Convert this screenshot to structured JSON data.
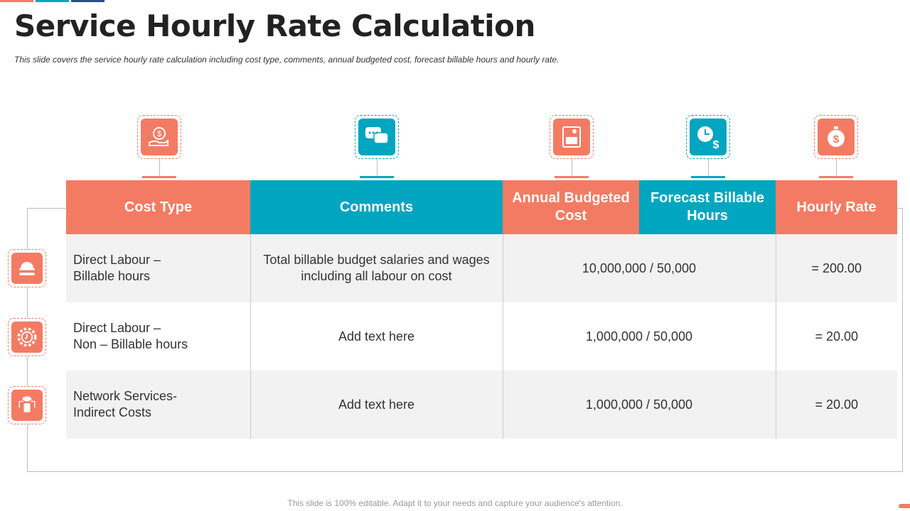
{
  "title": "Service Hourly Rate Calculation",
  "subtitle": "This slide covers the service hourly rate calculation including cost type, comments, annual budgeted cost, forecast billable hours and hourly rate.",
  "colors": {
    "orange": "#F47B63",
    "teal": "#00A5C0",
    "navy": "#2E4A8C"
  },
  "header_icons": [
    "money-bag-hand-icon",
    "chat-bubbles-icon",
    "calculator-invoice-icon",
    "clock-dollar-icon",
    "stopwatch-dollar-icon"
  ],
  "row_icons": [
    "helmet-wrench-icon",
    "gear-clock-icon",
    "cloud-database-icon"
  ],
  "columns": [
    "Cost Type",
    "Comments",
    "Annual Budgeted Cost",
    "Forecast Billable Hours",
    "Hourly Rate"
  ],
  "rows": [
    {
      "cost_type": [
        "Direct Labour –",
        "Billable hours"
      ],
      "comments": "Total billable budget salaries and wages including all labour on cost",
      "calc": "10,000,000 / 50,000",
      "rate": "= 200.00"
    },
    {
      "cost_type": [
        "Direct Labour –",
        "Non – Billable hours"
      ],
      "comments": "Add text here",
      "calc": "1,000,000 / 50,000",
      "rate": "= 20.00"
    },
    {
      "cost_type": [
        "Network Services-",
        "Indirect Costs"
      ],
      "comments": "Add text here",
      "calc": "1,000,000 / 50,000",
      "rate": "= 20.00"
    }
  ],
  "footer": "This slide is 100% editable. Adapt it to your needs and capture your audience's attention."
}
